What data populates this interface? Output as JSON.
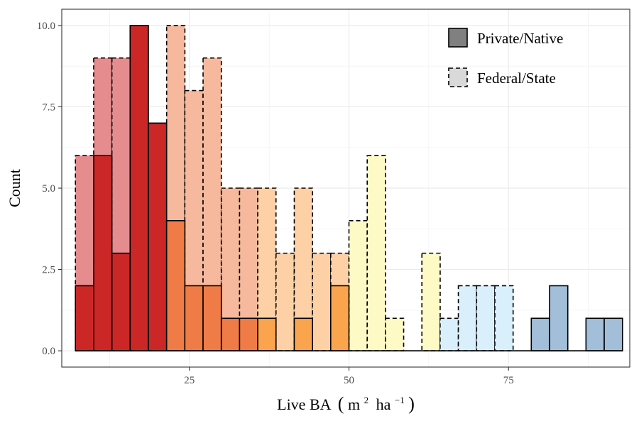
{
  "chart_data": {
    "type": "bar",
    "subtype": "overlaid-histogram",
    "xlabel": "Live BA",
    "xlabel_unit": {
      "open": "(",
      "m": "m",
      "m_exp": "2",
      "ha": "ha",
      "ha_exp": "−1",
      "close": ")"
    },
    "ylabel": "Count",
    "xlim": [
      5,
      94
    ],
    "ylim": [
      -0.5,
      10.5
    ],
    "x_ticks": [
      25,
      50,
      75
    ],
    "y_ticks": [
      0,
      2.5,
      5,
      7.5,
      10
    ],
    "y_tick_labels": [
      "0.0",
      "2.5",
      "5.0",
      "7.5",
      "10.0"
    ],
    "grid": true,
    "legend_position": "top-right",
    "bin_width": 2.86,
    "series": [
      {
        "name": "Private/Native",
        "line_style": "solid",
        "bins": [
          {
            "x": 8.57,
            "value": 2,
            "color": "#cb2727"
          },
          {
            "x": 11.43,
            "value": 6,
            "color": "#cb2727"
          },
          {
            "x": 14.29,
            "value": 3,
            "color": "#cb2727"
          },
          {
            "x": 17.14,
            "value": 10,
            "color": "#cb2727"
          },
          {
            "x": 20.0,
            "value": 7,
            "color": "#cb2727"
          },
          {
            "x": 22.86,
            "value": 4,
            "color": "#ef7c47"
          },
          {
            "x": 25.71,
            "value": 2,
            "color": "#ef7c47"
          },
          {
            "x": 28.57,
            "value": 2,
            "color": "#ef7c47"
          },
          {
            "x": 31.43,
            "value": 1,
            "color": "#ef7c47"
          },
          {
            "x": 34.29,
            "value": 1,
            "color": "#ef7c47"
          },
          {
            "x": 37.14,
            "value": 1,
            "color": "#fba44e"
          },
          {
            "x": 42.86,
            "value": 1,
            "color": "#fba44e"
          },
          {
            "x": 48.57,
            "value": 2,
            "color": "#fba44e"
          },
          {
            "x": 80.0,
            "value": 1,
            "color": "#a3bed8"
          },
          {
            "x": 82.86,
            "value": 2,
            "color": "#a3bed8"
          },
          {
            "x": 88.57,
            "value": 1,
            "color": "#a3bed8"
          },
          {
            "x": 91.43,
            "value": 1,
            "color": "#a3bed8"
          }
        ]
      },
      {
        "name": "Federal/State",
        "line_style": "dashed",
        "bins": [
          {
            "x": 8.57,
            "value": 6,
            "color": "#e58c8f"
          },
          {
            "x": 11.43,
            "value": 9,
            "color": "#e58c8f"
          },
          {
            "x": 14.29,
            "value": 9,
            "color": "#e58c8f"
          },
          {
            "x": 17.14,
            "value": 0,
            "color": "#e58c8f"
          },
          {
            "x": 20.0,
            "value": 6,
            "color": "#e58c8f"
          },
          {
            "x": 22.86,
            "value": 10,
            "color": "#f6b99d"
          },
          {
            "x": 25.71,
            "value": 8,
            "color": "#f6b99d"
          },
          {
            "x": 28.57,
            "value": 9,
            "color": "#f6b99d"
          },
          {
            "x": 31.43,
            "value": 5,
            "color": "#f6b99d"
          },
          {
            "x": 34.29,
            "value": 5,
            "color": "#f6b99d"
          },
          {
            "x": 37.14,
            "value": 5,
            "color": "#fdd1a5"
          },
          {
            "x": 40.0,
            "value": 3,
            "color": "#fdd1a5"
          },
          {
            "x": 42.86,
            "value": 5,
            "color": "#fdd1a5"
          },
          {
            "x": 45.71,
            "value": 3,
            "color": "#fdd1a5"
          },
          {
            "x": 48.57,
            "value": 3,
            "color": "#fdd1a5"
          },
          {
            "x": 51.43,
            "value": 4,
            "color": "#fefac6"
          },
          {
            "x": 54.29,
            "value": 6,
            "color": "#fefac6"
          },
          {
            "x": 57.14,
            "value": 1,
            "color": "#fefac6"
          },
          {
            "x": 62.86,
            "value": 3,
            "color": "#fefac6"
          },
          {
            "x": 65.71,
            "value": 1,
            "color": "#daeffc"
          },
          {
            "x": 68.57,
            "value": 2,
            "color": "#daeffc"
          },
          {
            "x": 71.43,
            "value": 2,
            "color": "#daeffc"
          },
          {
            "x": 74.29,
            "value": 2,
            "color": "#daeffc"
          }
        ]
      }
    ]
  }
}
